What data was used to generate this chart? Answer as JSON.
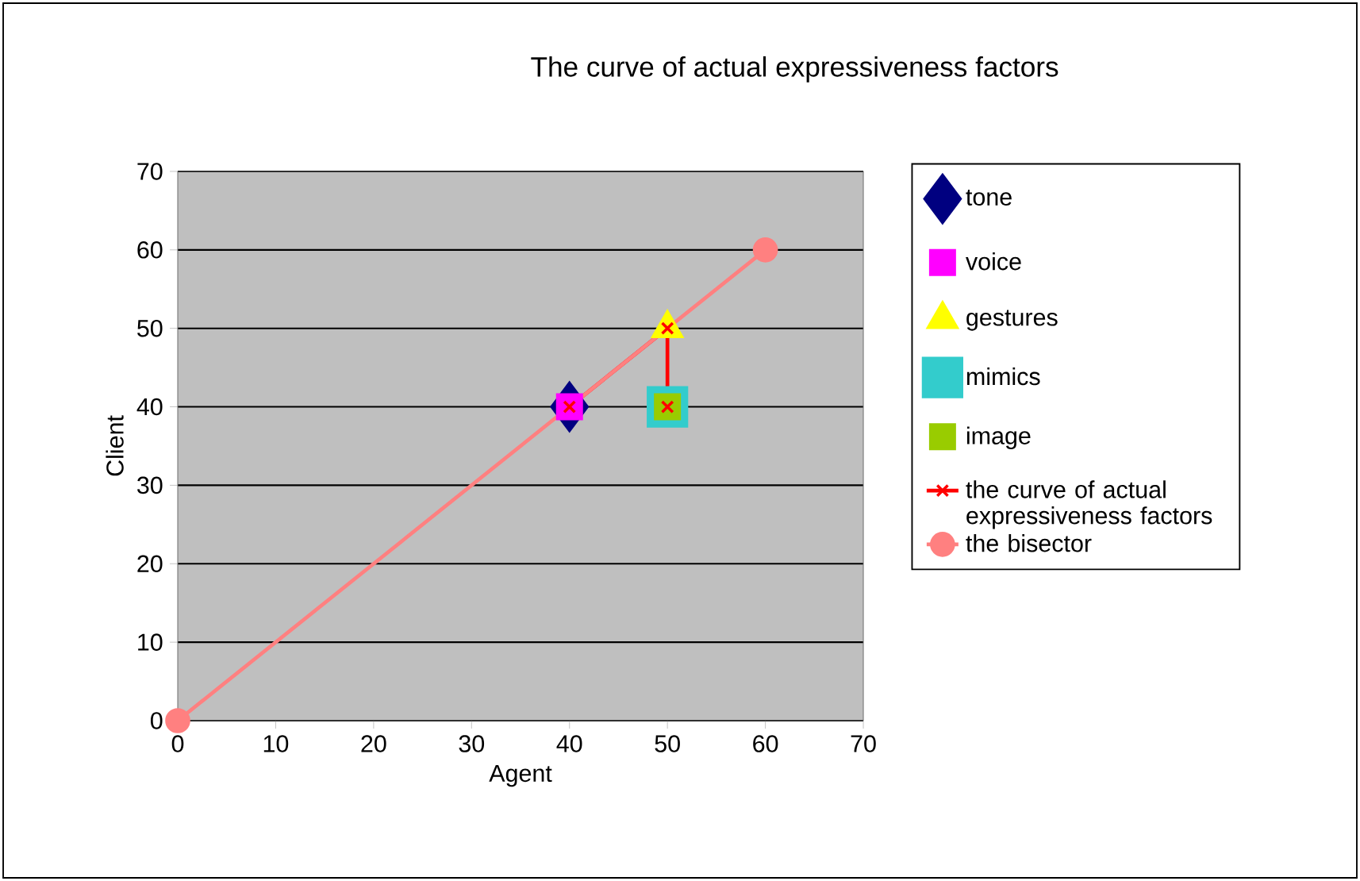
{
  "chart_data": {
    "type": "scatter",
    "title": "The curve of actual expressiveness factors",
    "xlabel": "Agent",
    "ylabel": "Client",
    "xlim": [
      0,
      70
    ],
    "ylim": [
      0,
      70
    ],
    "xticks": [
      0,
      10,
      20,
      30,
      40,
      50,
      60,
      70
    ],
    "yticks": [
      0,
      10,
      20,
      30,
      40,
      50,
      60,
      70
    ],
    "grid": "y",
    "legend": "right",
    "series": [
      {
        "name": "tone",
        "color": "#000080",
        "marker": "diamond",
        "x": [
          40
        ],
        "values": [
          40
        ]
      },
      {
        "name": "voice",
        "color": "#ff00ff",
        "marker": "square",
        "x": [
          40
        ],
        "values": [
          40
        ]
      },
      {
        "name": "gestures",
        "color": "#ffff00",
        "marker": "triangle",
        "x": [
          50
        ],
        "values": [
          50
        ]
      },
      {
        "name": "mimics",
        "color": "#33cccc",
        "marker": "square",
        "x": [
          50
        ],
        "values": [
          40
        ]
      },
      {
        "name": "image",
        "color": "#99cc00",
        "marker": "square",
        "x": [
          50
        ],
        "values": [
          40
        ]
      },
      {
        "name": "the curve of actual expressiveness factors",
        "type": "line",
        "color": "#ff0000",
        "marker": "cross",
        "x": [
          40,
          50,
          50
        ],
        "values": [
          40,
          50,
          40
        ]
      },
      {
        "name": "the bisector",
        "type": "line",
        "color": "#ff8080",
        "marker": "circle",
        "x": [
          0,
          60
        ],
        "values": [
          0,
          60
        ]
      }
    ]
  }
}
